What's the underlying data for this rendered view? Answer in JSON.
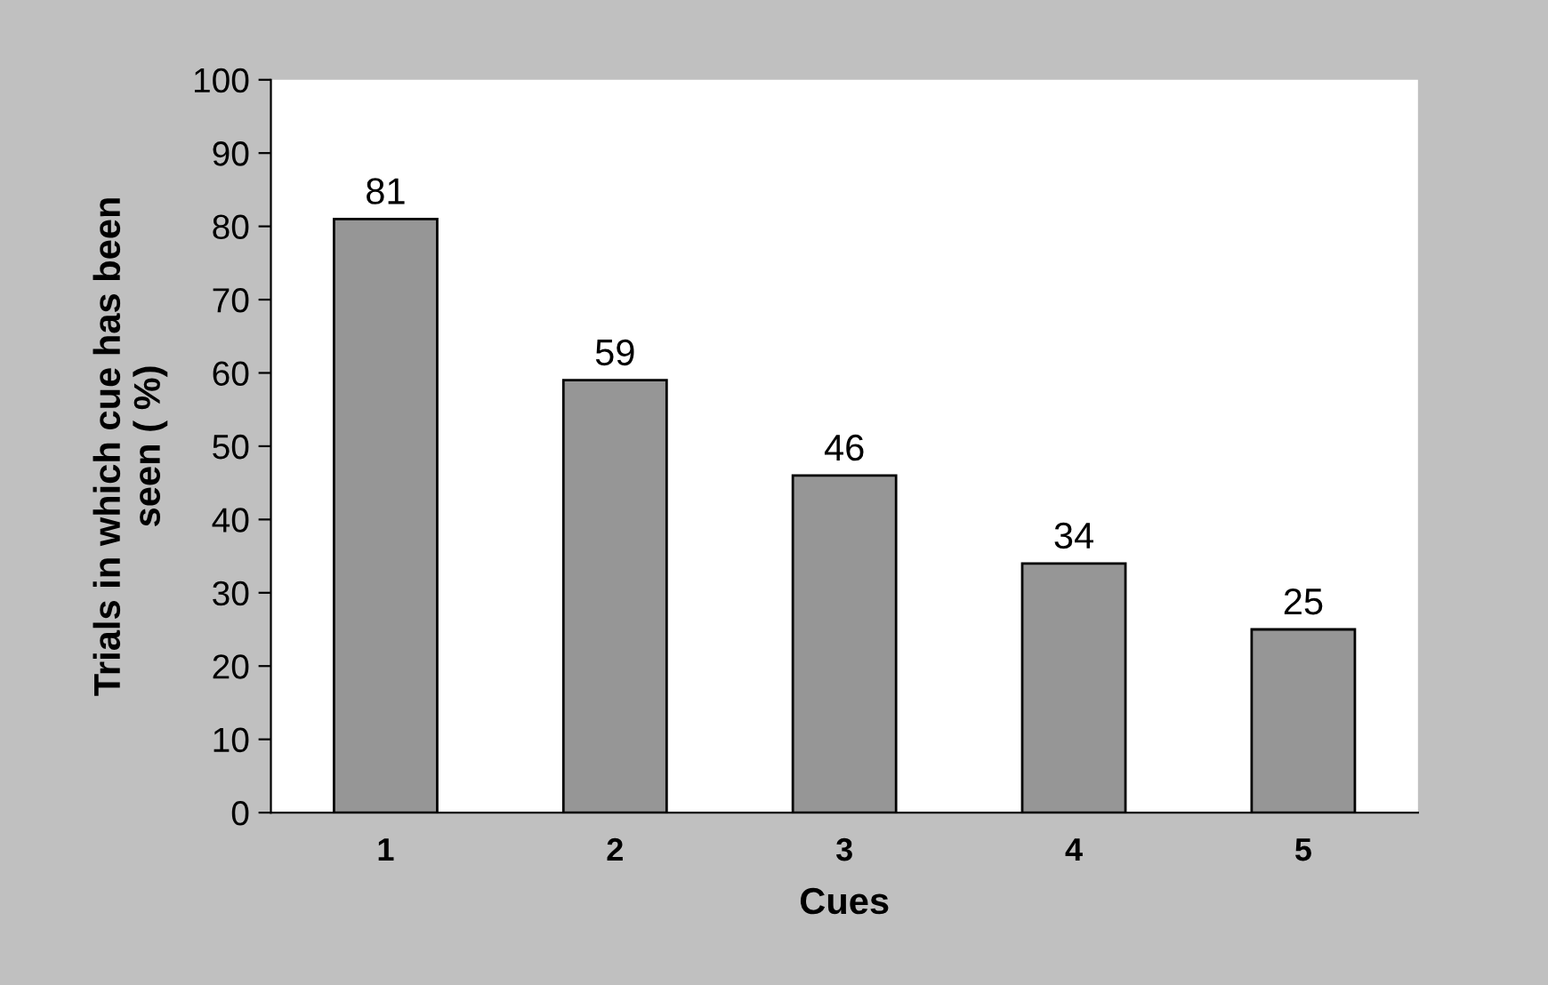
{
  "chart_data": {
    "type": "bar",
    "categories": [
      "1",
      "2",
      "3",
      "4",
      "5"
    ],
    "values": [
      81,
      59,
      46,
      34,
      25
    ],
    "color": "#969696",
    "xlabel": "Cues",
    "ylabel": "Trials in which cue has been\nseen ( %)",
    "ylim": [
      0,
      100
    ],
    "yticks": [
      0,
      10,
      20,
      30,
      40,
      50,
      60,
      70,
      80,
      90,
      100
    ],
    "data_labels": true,
    "grid": false,
    "legend": false
  }
}
